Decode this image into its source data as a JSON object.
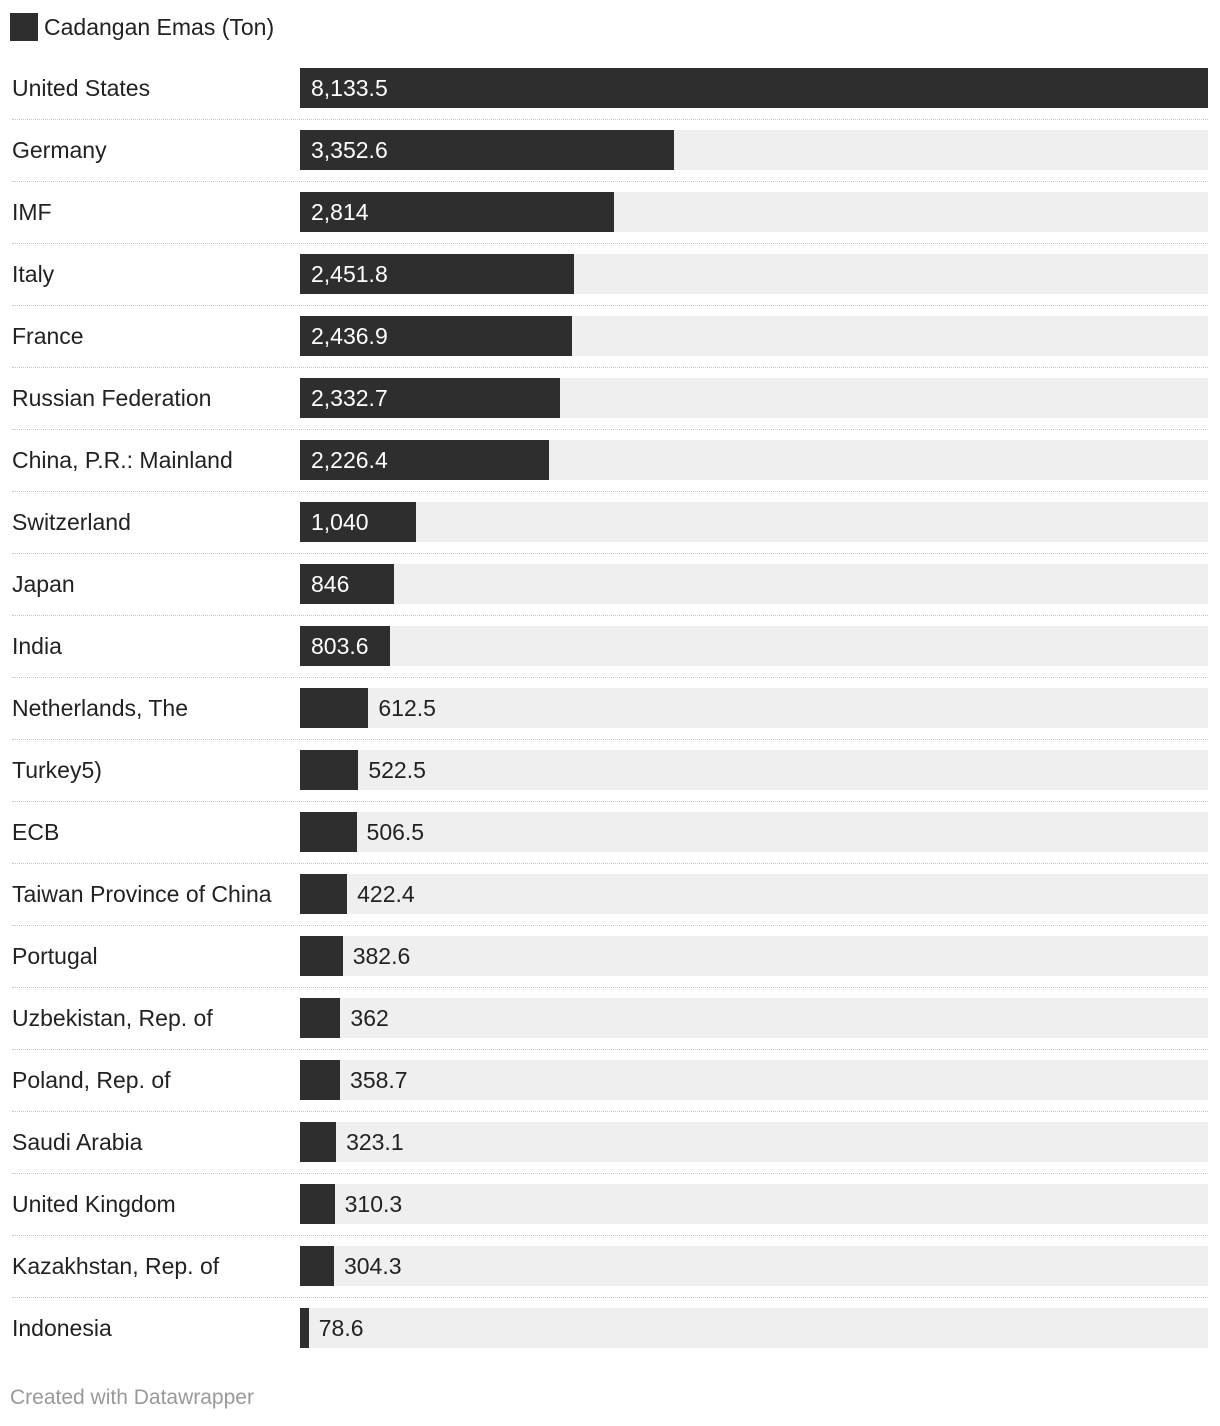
{
  "chart_data": {
    "type": "bar",
    "orientation": "horizontal",
    "legend": {
      "label": "Cadangan Emas (Ton)",
      "color": "#2e2e2e",
      "placement": "top-left"
    },
    "colors": {
      "bar": "#2e2e2e",
      "track": "#efefef"
    },
    "xlim": [
      0,
      8133.5
    ],
    "categories": [
      "United States",
      "Germany",
      "IMF",
      "Italy",
      "France",
      "Russian Federation",
      "China, P.R.: Mainland",
      "Switzerland",
      "Japan",
      "India",
      "Netherlands, The",
      "Turkey5)",
      "ECB",
      "Taiwan Province of China",
      "Portugal",
      "Uzbekistan, Rep. of",
      "Poland, Rep. of",
      "Saudi Arabia",
      "United Kingdom",
      "Kazakhstan, Rep. of",
      "Indonesia"
    ],
    "values": [
      8133.5,
      3352.6,
      2814,
      2451.8,
      2436.9,
      2332.7,
      2226.4,
      1040,
      846,
      803.6,
      612.5,
      522.5,
      506.5,
      422.4,
      382.6,
      362,
      358.7,
      323.1,
      310.3,
      304.3,
      78.6
    ],
    "value_labels": [
      "8,133.5",
      "3,352.6",
      "2,814",
      "2,451.8",
      "2,436.9",
      "2,332.7",
      "2,226.4",
      "1,040",
      "846",
      "803.6",
      "612.5",
      "522.5",
      "506.5",
      "422.4",
      "382.6",
      "362",
      "358.7",
      "323.1",
      "310.3",
      "304.3",
      "78.6"
    ]
  },
  "footer": {
    "credit": "Created with Datawrapper"
  }
}
